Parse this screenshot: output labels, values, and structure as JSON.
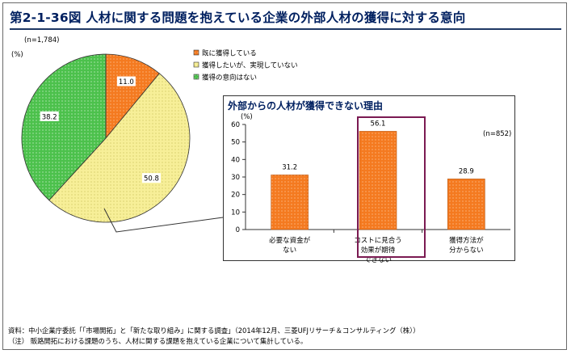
{
  "figure_title": "第2-1-36図 人材に関する問題を抱えている企業の外部人材の獲得に対する意向",
  "colors": {
    "orange": "#f47a20",
    "yellow": "#f7ef98",
    "green": "#4cc14c",
    "highlight_border": "#7b1a52",
    "title": "#002060"
  },
  "notes": {
    "source": "資料：中小企業庁委託「「市場開拓」と「新たな取り組み」に関する調査」（2014年12月、三菱UFJリサーチ＆コンサルティング（株））",
    "note": "（注） 販路開拓における課題のうち、人材に関する課題を抱えている企業について集計している。"
  },
  "chart_data": [
    {
      "type": "pie",
      "sample": "(n=1,784)",
      "unit": "(%)",
      "categories": [
        "既に獲得している",
        "獲得したいが、実現していない",
        "獲得の意向はない"
      ],
      "values": [
        11.0,
        50.8,
        38.2
      ],
      "value_labels": [
        "11.0",
        "50.8",
        "38.2"
      ],
      "colors": [
        "#f47a20",
        "#f7ef98",
        "#4cc14c"
      ],
      "legend_position": "top-right"
    },
    {
      "type": "bar",
      "title": "外部からの人材が獲得できない理由",
      "sample": "(n=852)",
      "ylabel": "(%)",
      "categories": [
        [
          "必要な資金が",
          "ない"
        ],
        [
          "コストに見合う",
          "効果が期待",
          "できない"
        ],
        [
          "獲得方法が",
          "分からない"
        ]
      ],
      "values": [
        31.2,
        56.1,
        28.9
      ],
      "value_labels": [
        "31.2",
        "56.1",
        "28.9"
      ],
      "ylim": [
        0,
        60
      ],
      "yticks": [
        "0",
        "10",
        "20",
        "30",
        "40",
        "50",
        "60"
      ],
      "highlighted_index": 1,
      "color": "#f47a20"
    }
  ]
}
